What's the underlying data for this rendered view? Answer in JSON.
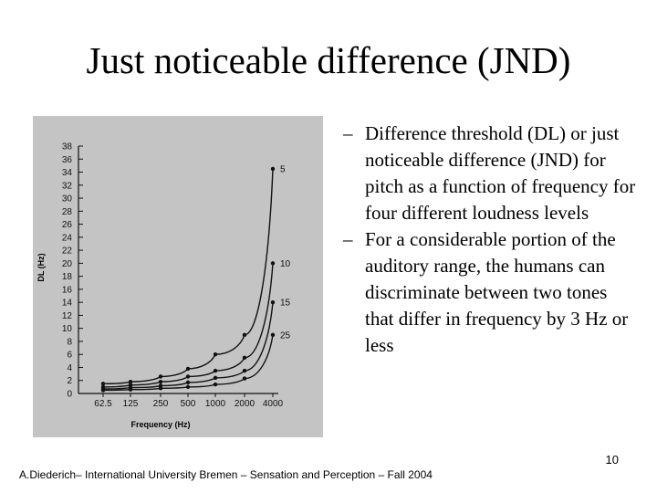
{
  "slide": {
    "title": "Just noticeable difference (JND)",
    "bullets": [
      "Difference threshold (DL) or just noticeable difference (JND) for pitch as a function of frequency for four different loudness levels",
      "For a considerable portion of the auditory range, the humans can discriminate between two tones that differ in frequency by 3 Hz or less"
    ],
    "bullet_marker": "–",
    "page_number": "10",
    "footer": "A.Diederich– International University Bremen – Sensation and Perception – Fall 2004"
  },
  "colors": {
    "figure_background": "#c4c4c4",
    "curve": "#111111"
  },
  "chart_data": {
    "type": "line",
    "title": "",
    "xlabel": "Frequency (Hz)",
    "ylabel": "DL (Hz)",
    "categories": [
      "62.5",
      "125",
      "250",
      "500",
      "1000",
      "2000",
      "4000"
    ],
    "ylim": [
      0,
      38
    ],
    "yticks": [
      0,
      2,
      4,
      6,
      8,
      10,
      12,
      14,
      16,
      18,
      20,
      22,
      24,
      26,
      28,
      30,
      32,
      34,
      36,
      38
    ],
    "grid": false,
    "legend": "end-of-line labels",
    "series": [
      {
        "name": "5",
        "values": [
          1.5,
          1.8,
          2.6,
          3.8,
          6.0,
          9.0,
          34.5
        ]
      },
      {
        "name": "10",
        "values": [
          1.0,
          1.3,
          1.8,
          2.6,
          3.5,
          5.5,
          20.0
        ]
      },
      {
        "name": "15",
        "values": [
          0.7,
          0.9,
          1.2,
          1.7,
          2.4,
          3.5,
          14.0
        ]
      },
      {
        "name": "25",
        "values": [
          0.5,
          0.6,
          0.8,
          1.0,
          1.4,
          2.3,
          9.0
        ]
      }
    ]
  }
}
